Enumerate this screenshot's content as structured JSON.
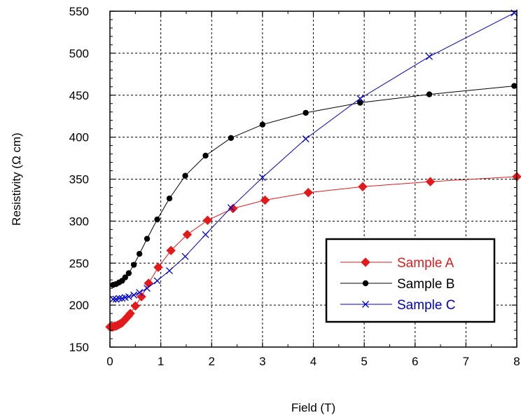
{
  "chart_data": {
    "type": "line",
    "xlabel": "Field (T)",
    "ylabel": "Resistivity (Ω cm)",
    "xlim": [
      0,
      8
    ],
    "ylim": [
      150,
      550
    ],
    "xticks": [
      0,
      1,
      2,
      3,
      4,
      5,
      6,
      7,
      8
    ],
    "yticks": [
      150,
      200,
      250,
      300,
      350,
      400,
      450,
      500,
      550
    ],
    "grid": "dashed",
    "legend_position": "bottom-right",
    "series": [
      {
        "name": "Sample A",
        "color": "#e31a1c",
        "marker": "diamond",
        "x": [
          0.0,
          0.03,
          0.06,
          0.09,
          0.12,
          0.15,
          0.18,
          0.21,
          0.24,
          0.27,
          0.3,
          0.33,
          0.36,
          0.4,
          0.5,
          0.62,
          0.76,
          0.95,
          1.2,
          1.52,
          1.92,
          2.42,
          3.05,
          3.9,
          4.97,
          6.3,
          8.0
        ],
        "y": [
          174,
          174,
          174,
          175,
          175,
          176,
          177,
          178,
          179,
          181,
          183,
          185,
          187,
          190,
          199,
          210,
          226,
          245,
          265,
          284,
          301,
          315,
          325,
          334,
          341,
          347,
          353
        ]
      },
      {
        "name": "Sample B",
        "color": "#000000",
        "marker": "circle",
        "x": [
          0.06,
          0.12,
          0.18,
          0.24,
          0.3,
          0.37,
          0.47,
          0.58,
          0.73,
          0.93,
          1.17,
          1.48,
          1.88,
          2.38,
          3.0,
          3.85,
          4.92,
          6.28,
          7.95
        ],
        "y": [
          224,
          225,
          227,
          229,
          233,
          238,
          248,
          261,
          279,
          302,
          327,
          354,
          378,
          399,
          415,
          429,
          441,
          451,
          461
        ]
      },
      {
        "name": "Sample C",
        "color": "#0000cc",
        "marker": "x",
        "x": [
          0.06,
          0.12,
          0.18,
          0.24,
          0.3,
          0.37,
          0.47,
          0.58,
          0.73,
          0.93,
          1.17,
          1.48,
          1.88,
          2.38,
          3.0,
          3.85,
          4.92,
          6.28,
          7.95
        ],
        "y": [
          207,
          207,
          208,
          208,
          209,
          210,
          212,
          215,
          220,
          229,
          241,
          258,
          284,
          316,
          352,
          398,
          446,
          496,
          548
        ]
      }
    ]
  }
}
